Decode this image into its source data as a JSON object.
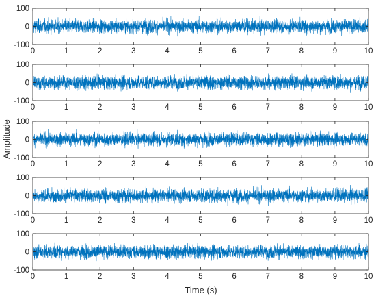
{
  "chart_data": {
    "type": "line",
    "xlabel": "Time (s)",
    "ylabel": "Amplitude",
    "xlim": [
      0,
      10
    ],
    "ylim": [
      -100,
      100
    ],
    "x_ticks": [
      "0",
      "1",
      "2",
      "3",
      "4",
      "5",
      "6",
      "7",
      "8",
      "9",
      "10"
    ],
    "y_ticks": [
      "100",
      "0",
      "-100"
    ],
    "grid": false,
    "line_color": "#0072BD",
    "subplots": [
      {
        "rows": 5,
        "cols": 1,
        "signal": "noise",
        "approx_amplitude": 40,
        "peak_amplitude": 70
      }
    ],
    "panels": [
      {
        "index": 1,
        "signal": "noise",
        "approx_amplitude": 40,
        "peak_amplitude": 70
      },
      {
        "index": 2,
        "signal": "noise",
        "approx_amplitude": 40,
        "peak_amplitude": 70
      },
      {
        "index": 3,
        "signal": "noise",
        "approx_amplitude": 40,
        "peak_amplitude": 70
      },
      {
        "index": 4,
        "signal": "noise",
        "approx_amplitude": 40,
        "peak_amplitude": 70
      },
      {
        "index": 5,
        "signal": "noise",
        "approx_amplitude": 40,
        "peak_amplitude": 70
      }
    ]
  }
}
